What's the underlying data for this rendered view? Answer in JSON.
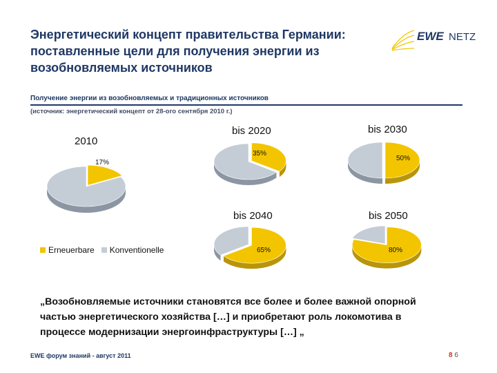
{
  "title": "Энергетический концепт правительства Германии: поставленные цели для получения энергии из возобновляемых источников",
  "logo": {
    "brand": "EWE",
    "suffix": "NETZ"
  },
  "section_header": "Получение энергии из возобновляемых и традиционных источников",
  "source_note": "(источник: энергетический концепт от 28-ого сентября 2010 г.)",
  "colors": {
    "renewable": "#f2c500",
    "renewable_dark": "#b8950a",
    "conventional": "#c4ccd6",
    "conventional_dark": "#8c96a3",
    "heading": "#1f3864"
  },
  "chart_data": [
    {
      "type": "pie",
      "title": "2010",
      "categories": [
        "Erneuerbare",
        "Konventionelle"
      ],
      "values": [
        17,
        83
      ],
      "data_label": "17%"
    },
    {
      "type": "pie",
      "title": "bis 2020",
      "categories": [
        "Erneuerbare",
        "Konventionelle"
      ],
      "values": [
        35,
        65
      ],
      "data_label": "35%"
    },
    {
      "type": "pie",
      "title": "bis 2030",
      "categories": [
        "Erneuerbare",
        "Konventionelle"
      ],
      "values": [
        50,
        50
      ],
      "data_label": "50%"
    },
    {
      "type": "pie",
      "title": "bis 2040",
      "categories": [
        "Erneuerbare",
        "Konventionelle"
      ],
      "values": [
        65,
        35
      ],
      "data_label": "65%"
    },
    {
      "type": "pie",
      "title": "bis 2050",
      "categories": [
        "Erneuerbare",
        "Konventionelle"
      ],
      "values": [
        80,
        20
      ],
      "data_label": "80%"
    }
  ],
  "legend": [
    "Erneuerbare",
    "Konventionelle"
  ],
  "quote": "„Возобновляемые источники становятся все более и более важной опорной частью энергетического хозяйства […] и приобретают роль локомотива в процессе модернизации энергоинфраструктуры […] „",
  "footer": {
    "left": "EWE форум знаний - август 2011",
    "page_bold": "8",
    "page": "6"
  }
}
